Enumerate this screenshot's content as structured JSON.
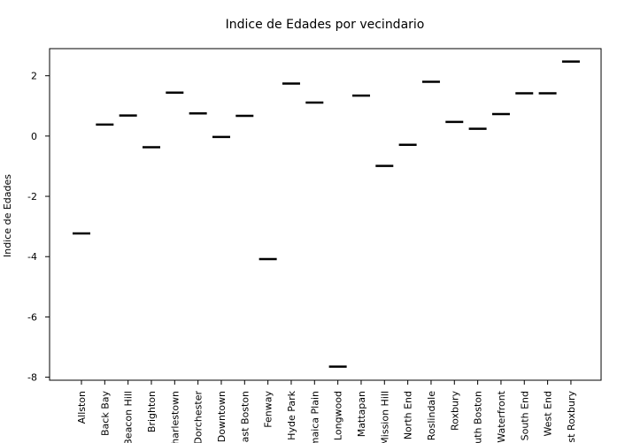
{
  "chart_data": {
    "type": "scatter",
    "title": "Indice de Edades por vecindario",
    "xlabel": "",
    "ylabel": "Indice de Edades",
    "ylim": [
      -8.1,
      2.9
    ],
    "yticks": [
      -8,
      -6,
      -4,
      -2,
      0,
      2
    ],
    "categories": [
      "Allston",
      "Back Bay",
      "Beacon Hill",
      "Brighton",
      "Charlestown",
      "Dorchester",
      "Downtown",
      "East Boston",
      "Fenway",
      "Hyde Park",
      "Jamaica Plain",
      "Longwood",
      "Mattapan",
      "Mission Hill",
      "North End",
      "Roslindale",
      "Roxbury",
      "South Boston",
      "Waterfront",
      "South End",
      "West End",
      "West Roxbury"
    ],
    "values": [
      -3.23,
      0.38,
      0.68,
      -0.37,
      1.44,
      0.75,
      -0.03,
      0.67,
      -4.08,
      1.74,
      1.11,
      -7.65,
      1.34,
      -0.99,
      -0.29,
      1.8,
      0.47,
      0.24,
      0.73,
      1.42,
      1.42,
      2.47
    ],
    "grid": false,
    "legend": false
  }
}
